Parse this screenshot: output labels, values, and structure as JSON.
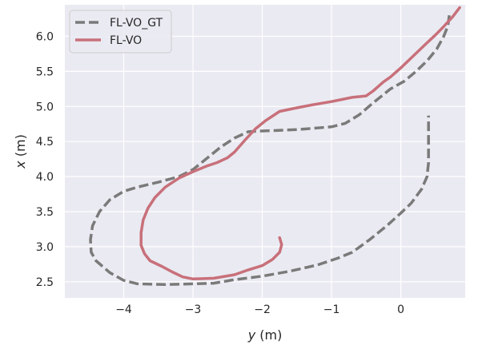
{
  "chart_data": {
    "type": "line",
    "xlabel_var": "y",
    "xlabel_unit": " (m)",
    "ylabel_var": "x",
    "ylabel_unit": " (m)",
    "xlim": [
      -4.85,
      0.93
    ],
    "ylim": [
      2.27,
      6.45
    ],
    "xticks": [
      -4,
      -3,
      -2,
      -1,
      0
    ],
    "xtick_labels": [
      "−4",
      "−3",
      "−2",
      "−1",
      "0"
    ],
    "yticks": [
      2.5,
      3.0,
      3.5,
      4.0,
      4.5,
      5.0,
      5.5,
      6.0
    ],
    "ytick_labels": [
      "2.5",
      "3.0",
      "3.5",
      "4.0",
      "4.5",
      "5.0",
      "5.5",
      "6.0"
    ],
    "grid": true,
    "legend_position": "top-left",
    "background": "#eaeaf2",
    "series": [
      {
        "name": "FL-VO_GT",
        "color": "#7a7a7a",
        "dash": "dashed",
        "points": [
          [
            0.7,
            6.3
          ],
          [
            0.68,
            6.15
          ],
          [
            0.62,
            6.0
          ],
          [
            0.52,
            5.82
          ],
          [
            0.38,
            5.65
          ],
          [
            0.22,
            5.5
          ],
          [
            0.05,
            5.36
          ],
          [
            -0.15,
            5.25
          ],
          [
            -0.4,
            5.05
          ],
          [
            -0.6,
            4.88
          ],
          [
            -0.8,
            4.76
          ],
          [
            -1.0,
            4.71
          ],
          [
            -1.5,
            4.67
          ],
          [
            -2.0,
            4.65
          ],
          [
            -2.2,
            4.64
          ],
          [
            -2.4,
            4.55
          ],
          [
            -2.6,
            4.42
          ],
          [
            -2.8,
            4.26
          ],
          [
            -3.0,
            4.1
          ],
          [
            -3.2,
            4.0
          ],
          [
            -3.5,
            3.92
          ],
          [
            -3.8,
            3.85
          ],
          [
            -4.0,
            3.79
          ],
          [
            -4.2,
            3.67
          ],
          [
            -4.35,
            3.5
          ],
          [
            -4.45,
            3.3
          ],
          [
            -4.48,
            3.1
          ],
          [
            -4.47,
            2.92
          ],
          [
            -4.4,
            2.8
          ],
          [
            -4.2,
            2.63
          ],
          [
            -4.0,
            2.52
          ],
          [
            -3.8,
            2.47
          ],
          [
            -3.4,
            2.46
          ],
          [
            -3.0,
            2.47
          ],
          [
            -2.7,
            2.48
          ],
          [
            -2.4,
            2.53
          ],
          [
            -2.0,
            2.58
          ],
          [
            -1.6,
            2.65
          ],
          [
            -1.2,
            2.74
          ],
          [
            -0.9,
            2.84
          ],
          [
            -0.7,
            2.92
          ],
          [
            -0.45,
            3.1
          ],
          [
            -0.2,
            3.3
          ],
          [
            0.0,
            3.48
          ],
          [
            0.15,
            3.62
          ],
          [
            0.3,
            3.82
          ],
          [
            0.38,
            4.0
          ],
          [
            0.4,
            4.2
          ],
          [
            0.4,
            4.5
          ],
          [
            0.4,
            4.87
          ]
        ]
      },
      {
        "name": "FL-VO",
        "color": "#c8707a",
        "dash": "solid",
        "points": [
          [
            0.85,
            6.41
          ],
          [
            0.75,
            6.28
          ],
          [
            0.6,
            6.12
          ],
          [
            0.5,
            6.02
          ],
          [
            0.35,
            5.88
          ],
          [
            0.18,
            5.72
          ],
          [
            0.0,
            5.55
          ],
          [
            -0.15,
            5.42
          ],
          [
            -0.25,
            5.35
          ],
          [
            -0.4,
            5.22
          ],
          [
            -0.5,
            5.15
          ],
          [
            -0.7,
            5.13
          ],
          [
            -1.0,
            5.07
          ],
          [
            -1.3,
            5.02
          ],
          [
            -1.55,
            4.97
          ],
          [
            -1.75,
            4.93
          ],
          [
            -1.95,
            4.8
          ],
          [
            -2.1,
            4.68
          ],
          [
            -2.25,
            4.52
          ],
          [
            -2.4,
            4.35
          ],
          [
            -2.5,
            4.27
          ],
          [
            -2.65,
            4.2
          ],
          [
            -2.8,
            4.15
          ],
          [
            -3.0,
            4.07
          ],
          [
            -3.2,
            3.98
          ],
          [
            -3.4,
            3.85
          ],
          [
            -3.55,
            3.7
          ],
          [
            -3.65,
            3.55
          ],
          [
            -3.72,
            3.38
          ],
          [
            -3.75,
            3.2
          ],
          [
            -3.75,
            3.02
          ],
          [
            -3.7,
            2.9
          ],
          [
            -3.62,
            2.8
          ],
          [
            -3.45,
            2.72
          ],
          [
            -3.3,
            2.64
          ],
          [
            -3.15,
            2.57
          ],
          [
            -3.0,
            2.54
          ],
          [
            -2.7,
            2.55
          ],
          [
            -2.4,
            2.6
          ],
          [
            -2.2,
            2.67
          ],
          [
            -2.0,
            2.73
          ],
          [
            -1.85,
            2.82
          ],
          [
            -1.75,
            2.92
          ],
          [
            -1.72,
            3.03
          ],
          [
            -1.75,
            3.13
          ]
        ]
      }
    ]
  }
}
